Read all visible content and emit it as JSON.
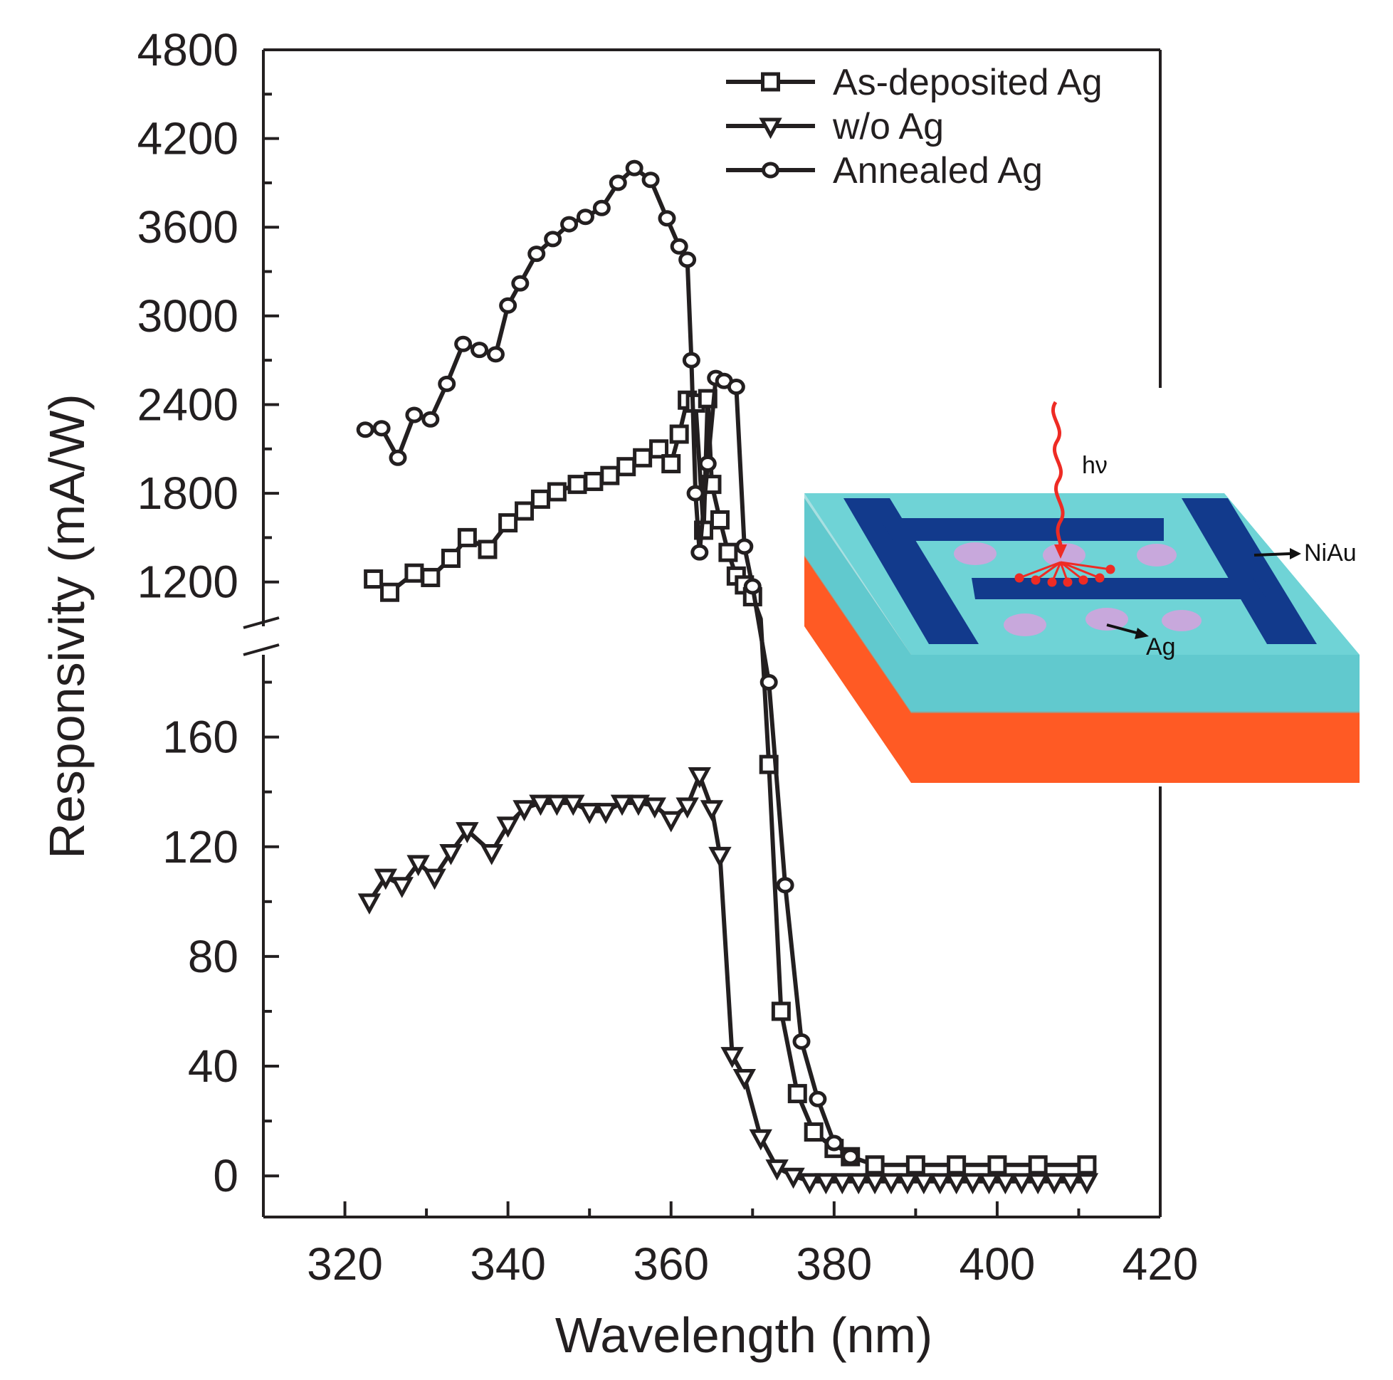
{
  "chart_data": {
    "type": "line",
    "title": "",
    "xlabel": "Wavelength (nm)",
    "ylabel": "Responsivity (mA/W)",
    "xlim": [
      310,
      420
    ],
    "x_ticks": [
      320,
      340,
      360,
      380,
      400,
      420
    ],
    "y_axis_broken": true,
    "y_lower_range": [
      -15,
      190
    ],
    "y_upper_range": [
      900,
      4800
    ],
    "y_ticks_lower": [
      0,
      40,
      80,
      120,
      160
    ],
    "y_ticks_upper": [
      1200,
      1800,
      2400,
      3000,
      3600,
      4200,
      4800
    ],
    "legend_position": "top-right",
    "series": [
      {
        "name": "As-deposited Ag",
        "marker": "square",
        "x": [
          323.5,
          325.5,
          328.5,
          330.5,
          333,
          335,
          337.5,
          340,
          342,
          344,
          346,
          348.5,
          350.5,
          352.5,
          354.5,
          356.5,
          358.5,
          360,
          361,
          362,
          363,
          364,
          364.5,
          365,
          366,
          367,
          368,
          369,
          370,
          371,
          372,
          373.5,
          375.5,
          377.5,
          380,
          382,
          385,
          390,
          395,
          400,
          405,
          411
        ],
        "y": [
          1220,
          1130,
          1260,
          1230,
          1360,
          1500,
          1420,
          1600,
          1680,
          1760,
          1810,
          1860,
          1880,
          1920,
          1980,
          2040,
          2100,
          2000,
          2200,
          2430,
          2410,
          1550,
          2440,
          1860,
          1620,
          1400,
          1240,
          1180,
          1100,
          950,
          150,
          60,
          30,
          16,
          10,
          7,
          4,
          4,
          4,
          4,
          4,
          4
        ]
      },
      {
        "name": "w/o Ag",
        "marker": "triangle-down",
        "x": [
          323,
          325,
          327,
          329,
          331,
          333,
          335,
          338,
          340,
          342,
          344,
          346,
          348,
          350,
          352,
          354,
          356,
          358,
          360,
          362,
          363.5,
          365,
          366,
          367.5,
          369,
          371,
          373,
          375,
          377,
          379,
          381,
          383,
          385,
          387,
          389,
          391,
          393,
          395,
          397,
          399,
          401,
          403,
          405,
          407,
          409,
          411
        ],
        "y": [
          100,
          109,
          106,
          114,
          109,
          118,
          126,
          118,
          128,
          134,
          136,
          136,
          136,
          133,
          133,
          136,
          136,
          135,
          130,
          135,
          146,
          134,
          117,
          44,
          36,
          14,
          3,
          0,
          -2,
          -2,
          -2,
          -2,
          -2,
          -2,
          -2,
          -2,
          -2,
          -2,
          -2,
          -2,
          -2,
          -2,
          -2,
          -2,
          -2,
          -2
        ]
      },
      {
        "name": "Annealed Ag",
        "marker": "circle",
        "x": [
          322.5,
          324.5,
          326.5,
          328.5,
          330.5,
          332.5,
          334.5,
          336.5,
          338.5,
          340,
          341.5,
          343.5,
          345.5,
          347.5,
          349.5,
          351.5,
          353.5,
          355.5,
          357.5,
          359.5,
          361,
          362,
          362.5,
          363,
          363.5,
          364.5,
          365.5,
          366.5,
          368,
          369,
          370,
          372,
          374,
          376,
          378,
          380,
          382
        ],
        "y": [
          2230,
          2240,
          2040,
          2330,
          2300,
          2540,
          2810,
          2770,
          2740,
          3070,
          3220,
          3420,
          3520,
          3620,
          3670,
          3730,
          3900,
          4000,
          3920,
          3660,
          3470,
          3380,
          2700,
          1800,
          1400,
          2000,
          2580,
          2560,
          2520,
          1440,
          1170,
          180,
          106,
          49,
          28,
          12,
          7
        ]
      }
    ],
    "inset": {
      "photon_label": "hν",
      "electrode_label": "NiAu",
      "particle_label": "Ag",
      "colors": {
        "top_layer": "#64cdd2",
        "substrate": "#ff5a24",
        "electrode": "#123a8c",
        "particle": "#c8a8dc",
        "photon_ray": "#ee2b24"
      }
    },
    "colors": {
      "line": "#231f20",
      "background": "#ffffff"
    }
  }
}
